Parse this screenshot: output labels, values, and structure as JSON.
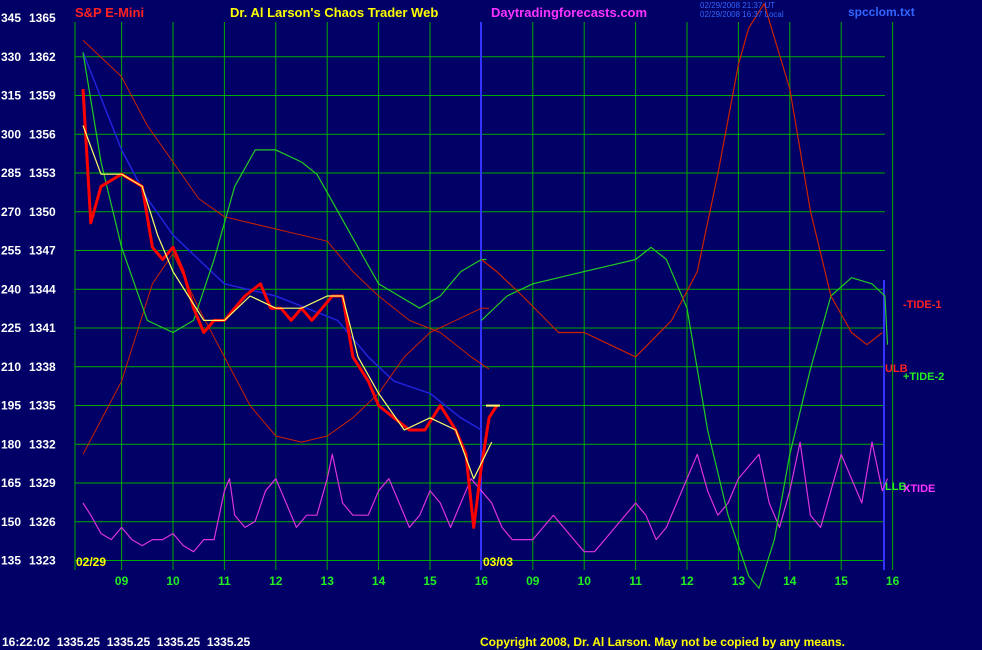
{
  "header": {
    "instrument": "S&P E-Mini",
    "title": "Dr. Al Larson's Chaos Trader Web",
    "site": "Daytradingforecasts.com",
    "file": "spcclom.txt",
    "stamp_line1": "02/29/2008 21:37 UT",
    "stamp_line2": "02/29/2008 16:37 Local"
  },
  "footer": {
    "quote": "16:22:02  1335.25  1335.25  1335.25  1335.25",
    "copyright": "Copyright 2008, Dr. Al Larson. May not be copied by any means."
  },
  "colors": {
    "background": "#000066",
    "grid": "#00aa00",
    "axis_text": "#ffffff",
    "price": "#ff0000",
    "average": "#ffff66",
    "envelope": "#cc2200",
    "tide1": "#cc2200",
    "tide2": "#22cc22",
    "xtide": "#dd33dd",
    "slow_avg": "#2222dd",
    "date_label": "#ffff00",
    "day_label": "#22ee22",
    "title": "#ffff00",
    "site": "#ff33ff",
    "file": "#3366ff",
    "copyright": "#ffff00",
    "footer_quote": "#ffffff",
    "divider": "#3333ff"
  },
  "chart_data": {
    "type": "line",
    "yaxis_left_osc": [
      345,
      330,
      315,
      300,
      285,
      270,
      255,
      240,
      225,
      210,
      195,
      180,
      165,
      150,
      135
    ],
    "yaxis_left_price": [
      1365,
      1362,
      1359,
      1356,
      1353,
      1350,
      1347,
      1344,
      1341,
      1338,
      1335,
      1332,
      1329,
      1326,
      1323
    ],
    "ylim_price": [
      1321.5,
      1366.5
    ],
    "day_ticks_1": [
      "09",
      "10",
      "11",
      "12",
      "13",
      "14",
      "15",
      "16"
    ],
    "day_ticks_2": [
      "09",
      "10",
      "11",
      "12",
      "13",
      "14",
      "15",
      "16"
    ],
    "date_labels": [
      "02/29",
      "03/03"
    ],
    "grid": true,
    "series_labels": [
      {
        "text": "-TIDE-1",
        "color": "#ff2222"
      },
      {
        "text": "ULB",
        "color": "#ff2222"
      },
      {
        "text": "+TIDE-2",
        "color": "#22ee22"
      },
      {
        "text": "LLB",
        "color": "#22ee22"
      },
      {
        "text": "XTIDE",
        "color": "#ff33ff"
      }
    ],
    "price": [
      [
        8.25,
        1361
      ],
      [
        8.4,
        1350
      ],
      [
        8.6,
        1353
      ],
      [
        9.0,
        1354
      ],
      [
        9.4,
        1353
      ],
      [
        9.6,
        1348
      ],
      [
        9.8,
        1347
      ],
      [
        10.0,
        1348
      ],
      [
        10.2,
        1346
      ],
      [
        10.4,
        1343
      ],
      [
        10.6,
        1341
      ],
      [
        10.8,
        1342
      ],
      [
        11.0,
        1342
      ],
      [
        11.2,
        1343
      ],
      [
        11.4,
        1344
      ],
      [
        11.7,
        1345
      ],
      [
        11.9,
        1343
      ],
      [
        12.1,
        1343
      ],
      [
        12.3,
        1342
      ],
      [
        12.5,
        1343
      ],
      [
        12.7,
        1342
      ],
      [
        12.9,
        1343
      ],
      [
        13.1,
        1344
      ],
      [
        13.3,
        1344
      ],
      [
        13.5,
        1339
      ],
      [
        13.8,
        1337
      ],
      [
        14.0,
        1335
      ],
      [
        14.3,
        1334
      ],
      [
        14.6,
        1333
      ],
      [
        14.9,
        1333
      ],
      [
        15.2,
        1335
      ],
      [
        15.5,
        1333
      ],
      [
        15.7,
        1331
      ],
      [
        15.85,
        1325
      ],
      [
        16.0,
        1330
      ],
      [
        16.15,
        1334
      ],
      [
        16.3,
        1335
      ]
    ],
    "average": [
      [
        8.25,
        1358
      ],
      [
        8.6,
        1354
      ],
      [
        9.0,
        1354
      ],
      [
        9.4,
        1353
      ],
      [
        9.7,
        1349
      ],
      [
        10.0,
        1346
      ],
      [
        10.3,
        1344
      ],
      [
        10.6,
        1342
      ],
      [
        11.0,
        1342
      ],
      [
        11.5,
        1344
      ],
      [
        12.0,
        1343
      ],
      [
        12.5,
        1343
      ],
      [
        13.0,
        1344
      ],
      [
        13.3,
        1344
      ],
      [
        13.6,
        1339
      ],
      [
        14.0,
        1336
      ],
      [
        14.5,
        1333
      ],
      [
        15.0,
        1334
      ],
      [
        15.5,
        1333
      ],
      [
        15.85,
        1329
      ],
      [
        16.2,
        1332
      ]
    ],
    "slow_average": [
      [
        8.25,
        1364
      ],
      [
        9.0,
        1356
      ],
      [
        9.5,
        1352
      ],
      [
        10.0,
        1349
      ],
      [
        10.5,
        1347
      ],
      [
        11.0,
        1345
      ],
      [
        12.0,
        1344
      ],
      [
        12.6,
        1343
      ],
      [
        13.2,
        1342
      ],
      [
        13.8,
        1339
      ],
      [
        14.3,
        1337
      ],
      [
        15.0,
        1336
      ],
      [
        15.6,
        1334
      ],
      [
        16.0,
        1333
      ]
    ],
    "upper_band": [
      [
        8.25,
        1365
      ],
      [
        9.0,
        1362
      ],
      [
        9.5,
        1358
      ],
      [
        10.0,
        1355
      ],
      [
        10.5,
        1352
      ],
      [
        11.0,
        1350.5
      ],
      [
        12.0,
        1349.5
      ],
      [
        13.0,
        1348.5
      ],
      [
        13.5,
        1346
      ],
      [
        14.0,
        1344
      ],
      [
        14.6,
        1342
      ],
      [
        15.2,
        1341
      ],
      [
        15.8,
        1339
      ],
      [
        16.15,
        1338
      ]
    ],
    "lower_band": [
      [
        8.25,
        1331
      ],
      [
        9.0,
        1337
      ],
      [
        9.6,
        1345
      ],
      [
        10.0,
        1347.5
      ],
      [
        10.5,
        1343
      ],
      [
        11.0,
        1339
      ],
      [
        11.5,
        1335
      ],
      [
        12.0,
        1332.5
      ],
      [
        12.5,
        1332
      ],
      [
        13.0,
        1332.5
      ],
      [
        13.5,
        1334
      ],
      [
        14.0,
        1336
      ],
      [
        14.5,
        1339
      ],
      [
        15.0,
        1341
      ],
      [
        15.5,
        1342
      ],
      [
        16.0,
        1343
      ],
      [
        16.15,
        1343
      ]
    ],
    "tide1_red": [
      [
        16.0,
        1347
      ],
      [
        16.3,
        1346
      ],
      [
        16.8,
        1344
      ],
      [
        17.5,
        1341
      ],
      [
        18.0,
        1341
      ],
      [
        18.5,
        1340
      ],
      [
        19.0,
        1339
      ],
      [
        19.7,
        1342
      ],
      [
        20.2,
        1346
      ],
      [
        20.6,
        1354
      ],
      [
        21.0,
        1363
      ],
      [
        21.2,
        1366
      ],
      [
        21.5,
        1368
      ],
      [
        22.0,
        1361
      ],
      [
        22.4,
        1351
      ],
      [
        22.8,
        1344
      ],
      [
        23.2,
        1341
      ],
      [
        23.5,
        1340
      ],
      [
        23.8,
        1341
      ]
    ],
    "tide2_green_pre": [
      [
        8.25,
        1364
      ],
      [
        8.6,
        1355
      ],
      [
        9.0,
        1348
      ],
      [
        9.5,
        1342
      ],
      [
        10.0,
        1341
      ],
      [
        10.4,
        1342
      ],
      [
        10.8,
        1347
      ],
      [
        11.2,
        1353
      ],
      [
        11.6,
        1356
      ],
      [
        12.0,
        1356
      ],
      [
        12.5,
        1355
      ],
      [
        12.8,
        1354
      ],
      [
        13.2,
        1351
      ],
      [
        13.6,
        1348
      ],
      [
        14.0,
        1345
      ],
      [
        14.4,
        1344
      ],
      [
        14.8,
        1343
      ],
      [
        15.2,
        1344
      ],
      [
        15.6,
        1346
      ],
      [
        16.0,
        1347
      ],
      [
        16.1,
        1347
      ]
    ],
    "tide2_green_post": [
      [
        16.0,
        1342
      ],
      [
        16.5,
        1344
      ],
      [
        17.0,
        1345
      ],
      [
        17.5,
        1345.5
      ],
      [
        18.0,
        1346
      ],
      [
        18.5,
        1346.5
      ],
      [
        19.0,
        1347
      ],
      [
        19.3,
        1348
      ],
      [
        19.6,
        1347
      ],
      [
        20.0,
        1343
      ],
      [
        20.4,
        1333
      ],
      [
        20.8,
        1326
      ],
      [
        21.2,
        1321
      ],
      [
        21.4,
        1320
      ],
      [
        21.7,
        1324
      ],
      [
        22.0,
        1331
      ],
      [
        22.4,
        1338
      ],
      [
        22.8,
        1344
      ],
      [
        23.2,
        1345.5
      ],
      [
        23.6,
        1345
      ],
      [
        23.85,
        1344
      ],
      [
        23.9,
        1340
      ]
    ],
    "xtide": [
      [
        8.25,
        1327
      ],
      [
        8.4,
        1326
      ],
      [
        8.6,
        1324.5
      ],
      [
        8.8,
        1324
      ],
      [
        9.0,
        1325
      ],
      [
        9.2,
        1324
      ],
      [
        9.4,
        1323.5
      ],
      [
        9.6,
        1324
      ],
      [
        9.8,
        1324
      ],
      [
        10.0,
        1324.5
      ],
      [
        10.2,
        1323.5
      ],
      [
        10.4,
        1323
      ],
      [
        10.6,
        1324
      ],
      [
        10.8,
        1324
      ],
      [
        11.0,
        1328
      ],
      [
        11.1,
        1329
      ],
      [
        11.2,
        1326
      ],
      [
        11.4,
        1325
      ],
      [
        11.6,
        1325.5
      ],
      [
        11.8,
        1328
      ],
      [
        12.0,
        1329
      ],
      [
        12.2,
        1327
      ],
      [
        12.4,
        1325
      ],
      [
        12.6,
        1326
      ],
      [
        12.8,
        1326
      ],
      [
        13.0,
        1329
      ],
      [
        13.1,
        1331
      ],
      [
        13.3,
        1327
      ],
      [
        13.5,
        1326
      ],
      [
        13.8,
        1326
      ],
      [
        14.0,
        1328
      ],
      [
        14.2,
        1329
      ],
      [
        14.4,
        1327
      ],
      [
        14.6,
        1325
      ],
      [
        14.8,
        1326
      ],
      [
        15.0,
        1328
      ],
      [
        15.2,
        1327
      ],
      [
        15.4,
        1325
      ],
      [
        15.6,
        1327
      ],
      [
        15.8,
        1329
      ],
      [
        16.0,
        1328
      ],
      [
        16.2,
        1327
      ],
      [
        16.4,
        1325
      ],
      [
        16.6,
        1324
      ],
      [
        16.8,
        1324
      ],
      [
        17.0,
        1324
      ],
      [
        17.2,
        1325
      ],
      [
        17.4,
        1326
      ],
      [
        17.6,
        1325
      ],
      [
        17.8,
        1324
      ],
      [
        18.0,
        1323
      ],
      [
        18.2,
        1323
      ],
      [
        18.4,
        1324
      ],
      [
        18.6,
        1325
      ],
      [
        18.8,
        1326
      ],
      [
        19.0,
        1327
      ],
      [
        19.2,
        1326
      ],
      [
        19.4,
        1324
      ],
      [
        19.6,
        1325
      ],
      [
        19.8,
        1327
      ],
      [
        20.0,
        1329
      ],
      [
        20.2,
        1331
      ],
      [
        20.4,
        1328
      ],
      [
        20.6,
        1326
      ],
      [
        20.8,
        1327
      ],
      [
        21.0,
        1329
      ],
      [
        21.2,
        1330
      ],
      [
        21.4,
        1331
      ],
      [
        21.6,
        1327
      ],
      [
        21.8,
        1325
      ],
      [
        22.0,
        1328
      ],
      [
        22.2,
        1332
      ],
      [
        22.4,
        1326
      ],
      [
        22.6,
        1325
      ],
      [
        22.8,
        1328
      ],
      [
        23.0,
        1331
      ],
      [
        23.2,
        1329
      ],
      [
        23.4,
        1327
      ],
      [
        23.6,
        1332
      ],
      [
        23.8,
        1328
      ],
      [
        23.9,
        1329
      ]
    ]
  }
}
